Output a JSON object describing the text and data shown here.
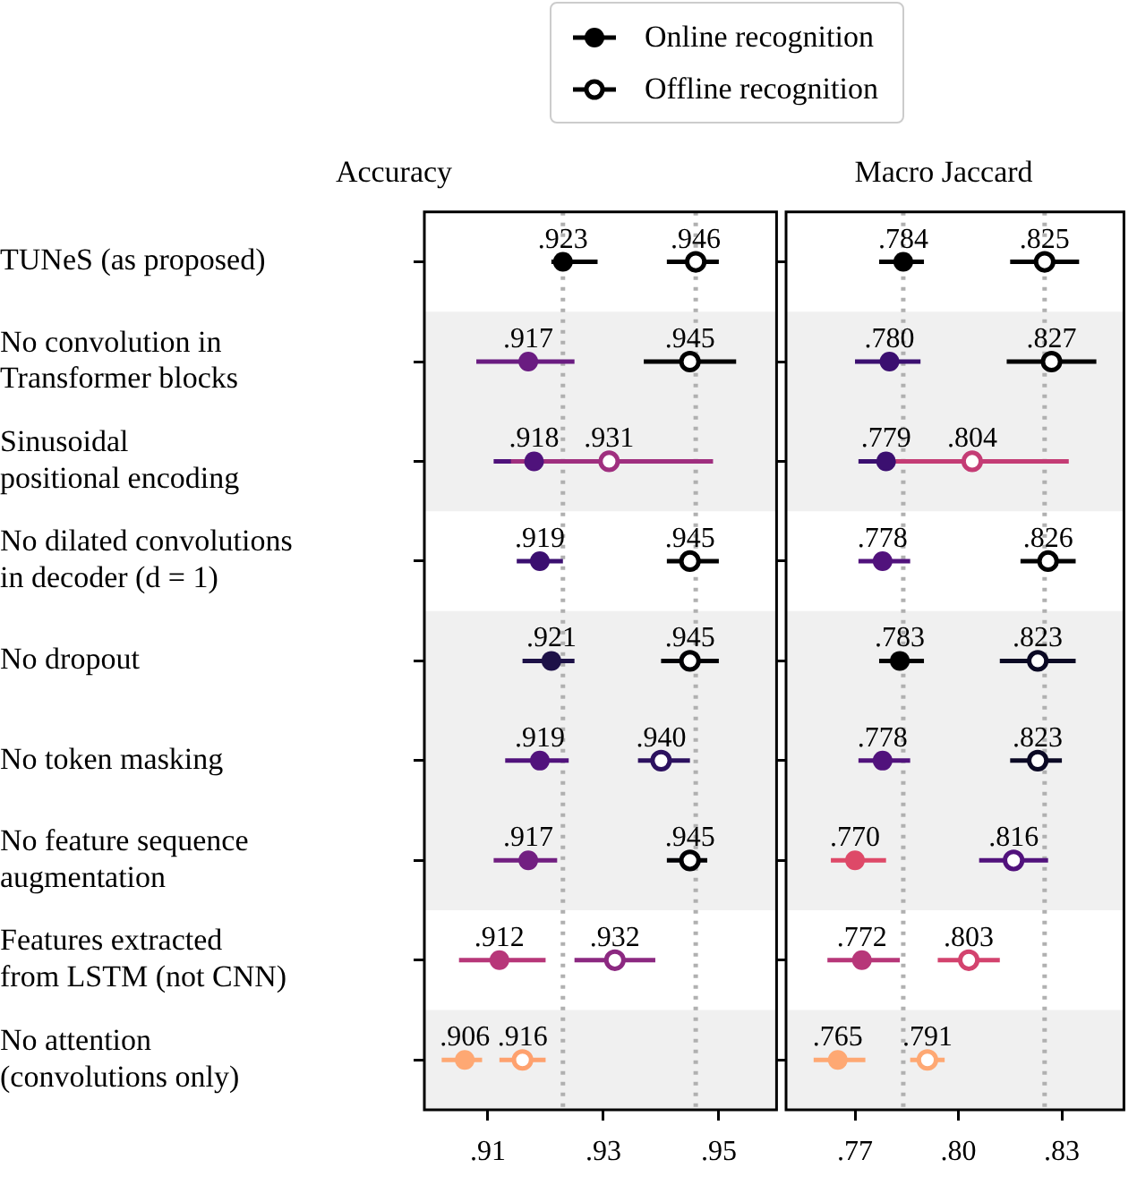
{
  "chart_data": [
    {
      "type": "scatter",
      "title": "Accuracy",
      "categories": [
        "TUNeS (as proposed)",
        "No convolution in\nTransformer blocks",
        "Sinusoidal\npositional encoding",
        "No dilated convolutions\nin decoder (d = 1)",
        "No dropout",
        "No token masking",
        "No feature sequence\naugmentation",
        "Features extracted\nfrom LSTM (not CNN)",
        "No attention\n(convolutions only)"
      ],
      "series": [
        {
          "name": "Online recognition",
          "color": "#000000",
          "colors": [
            "#000000",
            "#6a1c81",
            "#4f127b",
            "#3b0f70",
            "#1d1147",
            "#51127c",
            "#721f81",
            "#b73779",
            "#fea873"
          ],
          "values": [
            0.923,
            0.917,
            0.918,
            0.919,
            0.921,
            0.919,
            0.917,
            0.912,
            0.906
          ],
          "errors": [
            [
              0.921,
              0.929
            ],
            [
              0.908,
              0.925
            ],
            [
              0.911,
              0.925
            ],
            [
              0.915,
              0.923
            ],
            [
              0.916,
              0.925
            ],
            [
              0.913,
              0.924
            ],
            [
              0.911,
              0.922
            ],
            [
              0.905,
              0.92
            ],
            [
              0.902,
              0.909
            ]
          ],
          "value_labels": [
            ".923",
            ".917",
            ".918",
            ".919",
            ".921",
            ".919",
            ".917",
            ".912",
            ".906"
          ]
        },
        {
          "name": "Offline recognition",
          "color": "#000000",
          "colors": [
            "#000000",
            "#000000",
            "#9f2f7f",
            "#000000",
            "#000004",
            "#2c115f",
            "#000004",
            "#8c2981",
            "#fea16e"
          ],
          "values": [
            0.946,
            0.945,
            0.931,
            0.945,
            0.945,
            0.94,
            0.945,
            0.932,
            0.916
          ],
          "errors": [
            [
              0.941,
              0.95
            ],
            [
              0.937,
              0.953
            ],
            [
              0.914,
              0.949
            ],
            [
              0.941,
              0.95
            ],
            [
              0.94,
              0.95
            ],
            [
              0.936,
              0.945
            ],
            [
              0.941,
              0.948
            ],
            [
              0.925,
              0.939
            ],
            [
              0.912,
              0.92
            ]
          ],
          "value_labels": [
            ".946",
            ".945",
            ".931",
            ".945",
            ".945",
            ".940",
            ".945",
            ".932",
            ".916"
          ]
        }
      ],
      "xlim": [
        0.899,
        0.96
      ],
      "xticks": [
        {
          "value": 0.91,
          "label": ".91"
        },
        {
          "value": 0.93,
          "label": ".93"
        },
        {
          "value": 0.95,
          "label": ".95"
        }
      ],
      "ref_lines": [
        {
          "axis": "x",
          "value": 0.923,
          "color": "#b0b0b0",
          "line_style": "dotted"
        },
        {
          "axis": "x",
          "value": 0.946,
          "color": "#b0b0b0",
          "line_style": "dotted"
        }
      ],
      "bands": [
        {
          "axis": "y",
          "from": "No convolution in\nTransformer blocks",
          "to": "Sinusoidal\npositional encoding",
          "color": "#f0f0f0"
        },
        {
          "axis": "y",
          "from": "No dropout",
          "to": "No feature sequence\naugmentation",
          "color": "#f0f0f0"
        },
        {
          "axis": "y",
          "from": "No attention\n(convolutions only)",
          "to": "No attention\n(convolutions only)",
          "color": "#f0f0f0"
        }
      ],
      "marker": "circle",
      "grid": false,
      "legend": "top",
      "orientation": "horizontal"
    },
    {
      "type": "scatter",
      "title": "Macro Jaccard",
      "categories": [
        "TUNeS (as proposed)",
        "No convolution in\nTransformer blocks",
        "Sinusoidal\npositional encoding",
        "No dilated convolutions\nin decoder (d = 1)",
        "No dropout",
        "No token masking",
        "No feature sequence\naugmentation",
        "Features extracted\nfrom LSTM (not CNN)",
        "No attention\n(convolutions only)"
      ],
      "series": [
        {
          "colors": [
            "#000000",
            "#3b0f70",
            "#3b0f70",
            "#51127c",
            "#000000",
            "#51127c",
            "#de4968",
            "#b73779",
            "#fea873"
          ],
          "values": [
            0.784,
            0.78,
            0.779,
            0.778,
            0.783,
            0.778,
            0.77,
            0.772,
            0.765
          ],
          "errors": [
            [
              0.777,
              0.79
            ],
            [
              0.77,
              0.789
            ],
            [
              0.771,
              0.788
            ],
            [
              0.771,
              0.786
            ],
            [
              0.777,
              0.79
            ],
            [
              0.771,
              0.786
            ],
            [
              0.763,
              0.779
            ],
            [
              0.762,
              0.783
            ],
            [
              0.758,
              0.773
            ]
          ],
          "value_labels": [
            ".784",
            ".780",
            ".779",
            ".778",
            ".783",
            ".778",
            ".770",
            ".772",
            ".765"
          ]
        },
        {
          "colors": [
            "#000000",
            "#000000",
            "#c43c75",
            "#000000",
            "#0b0924",
            "#0b0924",
            "#51127c",
            "#d3436e",
            "#fea873"
          ],
          "values": [
            0.825,
            0.827,
            0.804,
            0.826,
            0.823,
            0.823,
            0.816,
            0.803,
            0.791
          ],
          "errors": [
            [
              0.815,
              0.835
            ],
            [
              0.814,
              0.84
            ],
            [
              0.777,
              0.832
            ],
            [
              0.818,
              0.834
            ],
            [
              0.812,
              0.834
            ],
            [
              0.815,
              0.83
            ],
            [
              0.806,
              0.826
            ],
            [
              0.794,
              0.812
            ],
            [
              0.786,
              0.796
            ]
          ],
          "value_labels": [
            ".825",
            ".827",
            ".804",
            ".826",
            ".823",
            ".823",
            ".816",
            ".803",
            ".791"
          ]
        }
      ],
      "xlim": [
        0.75,
        0.848
      ],
      "xticks": [
        {
          "value": 0.77,
          "label": ".77"
        },
        {
          "value": 0.8,
          "label": ".80"
        },
        {
          "value": 0.83,
          "label": ".83"
        }
      ],
      "ref_lines": [
        {
          "axis": "x",
          "value": 0.784,
          "color": "#b0b0b0",
          "line_style": "dotted"
        },
        {
          "axis": "x",
          "value": 0.825,
          "color": "#b0b0b0",
          "line_style": "dotted"
        }
      ],
      "bands": [
        {
          "axis": "y",
          "from": "No convolution in\nTransformer blocks",
          "to": "Sinusoidal\npositional encoding",
          "color": "#f0f0f0"
        },
        {
          "axis": "y",
          "from": "No dropout",
          "to": "No feature sequence\naugmentation",
          "color": "#f0f0f0"
        },
        {
          "axis": "y",
          "from": "No attention\n(convolutions only)",
          "to": "No attention\n(convolutions only)",
          "color": "#f0f0f0"
        }
      ],
      "marker": "circle",
      "grid": false,
      "tick_labels": "x",
      "orientation": "horizontal"
    }
  ]
}
